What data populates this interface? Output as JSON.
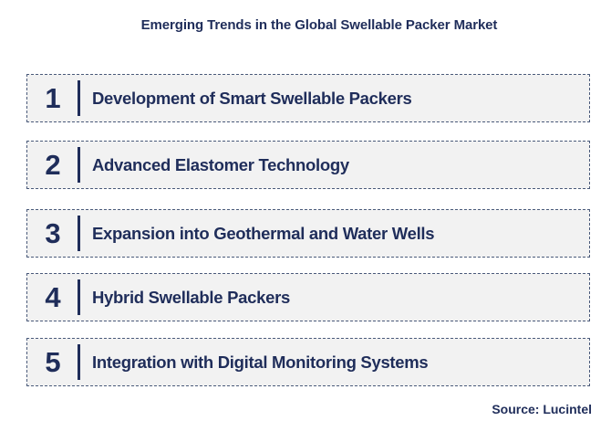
{
  "title": "Emerging Trends in the Global Swellable Packer Market",
  "trends": [
    {
      "number": "1",
      "label": "Development of Smart Swellable Packers"
    },
    {
      "number": "2",
      "label": "Advanced Elastomer Technology"
    },
    {
      "number": "3",
      "label": "Expansion into Geothermal and Water Wells"
    },
    {
      "number": "4",
      "label": "Hybrid Swellable Packers"
    },
    {
      "number": "5",
      "label": "Integration with Digital Monitoring Systems"
    }
  ],
  "source": "Source: Lucintel",
  "colors": {
    "text": "#1f2d5a",
    "box_fill": "#f2f2f2",
    "box_border": "#4a5a7a"
  }
}
